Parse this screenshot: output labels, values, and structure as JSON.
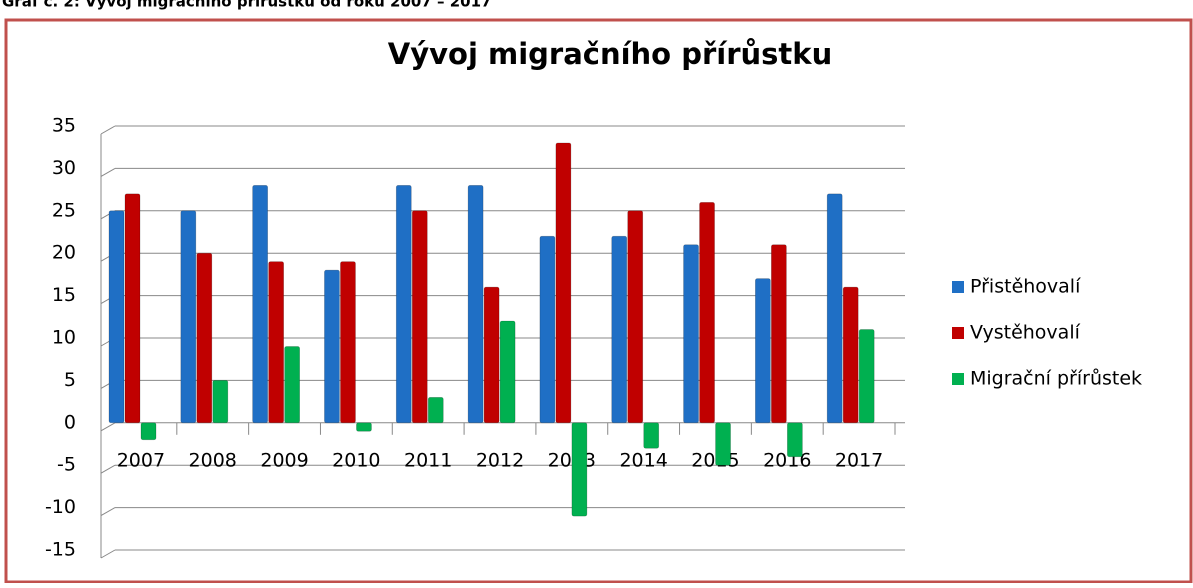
{
  "caption": "Graf č. 2: Vývoj migračního přírůstku od roku 2007 – 2017",
  "chart_data": {
    "type": "bar",
    "title": "Vývoj migračního přírůstku",
    "categories": [
      "2007",
      "2008",
      "2009",
      "2010",
      "2011",
      "2012",
      "2013",
      "2014",
      "2015",
      "2016",
      "2017"
    ],
    "series": [
      {
        "name": "Přistěhovalí",
        "color": "#1f6fc5",
        "values": [
          25,
          25,
          28,
          18,
          28,
          28,
          22,
          22,
          21,
          17,
          27
        ]
      },
      {
        "name": "Vystěhovalí",
        "color": "#c00000",
        "values": [
          27,
          20,
          19,
          19,
          25,
          16,
          33,
          25,
          26,
          21,
          16
        ]
      },
      {
        "name": "Migrační přírůstek",
        "color": "#00b050",
        "values": [
          -2,
          5,
          9,
          -1,
          3,
          12,
          -11,
          -3,
          -5,
          -4,
          11
        ]
      }
    ],
    "ylim": [
      -15,
      35
    ],
    "yticks": [
      -15,
      -10,
      -5,
      0,
      5,
      10,
      15,
      20,
      25,
      30,
      35
    ],
    "grid": true,
    "legend": "right"
  }
}
